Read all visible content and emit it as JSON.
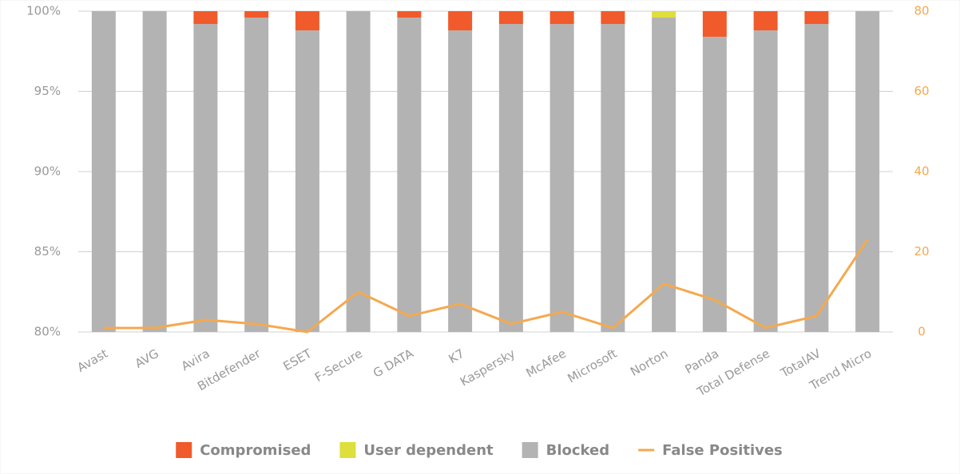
{
  "chart_data": {
    "type": "stacked_bar_line",
    "categories": [
      "Avast",
      "AVG",
      "Avira",
      "Bitdefender",
      "ESET",
      "F-Secure",
      "G DATA",
      "K7",
      "Kaspersky",
      "McAfee",
      "Microsoft",
      "Norton",
      "Panda",
      "Total Defense",
      "TotalAV",
      "Trend Micro"
    ],
    "series": [
      {
        "name": "Compromised",
        "color": "#f15a2b",
        "values": [
          0,
          0,
          0.8,
          0.4,
          1.2,
          0,
          0.4,
          1.2,
          0.8,
          0.8,
          0.8,
          0,
          1.6,
          1.2,
          0.8,
          0
        ]
      },
      {
        "name": "User dependent",
        "color": "#dede3c",
        "values": [
          0,
          0,
          0,
          0,
          0,
          0,
          0,
          0,
          0,
          0,
          0,
          0.4,
          0,
          0,
          0,
          0
        ]
      },
      {
        "name": "Blocked",
        "color": "#b3b3b3",
        "values": [
          100,
          100,
          99.2,
          99.6,
          98.8,
          100,
          99.6,
          98.8,
          99.2,
          99.2,
          99.2,
          99.6,
          98.4,
          98.8,
          99.2,
          100
        ]
      },
      {
        "name": "False Positives",
        "color": "#f4a94f",
        "axis": "y2",
        "values": [
          1,
          1,
          3,
          2,
          0,
          10,
          4,
          7,
          2,
          5,
          1,
          12,
          8,
          1,
          4,
          23
        ]
      }
    ],
    "ylim": [
      80,
      100
    ],
    "yticks": [
      {
        "value": 80,
        "label": "80%"
      },
      {
        "value": 85,
        "label": "85%"
      },
      {
        "value": 90,
        "label": "90%"
      },
      {
        "value": 95,
        "label": "95%"
      },
      {
        "value": 100,
        "label": "100%"
      }
    ],
    "y2lim": [
      0,
      80
    ],
    "y2ticks": [
      0,
      20,
      40,
      60,
      80
    ],
    "grid": true
  }
}
